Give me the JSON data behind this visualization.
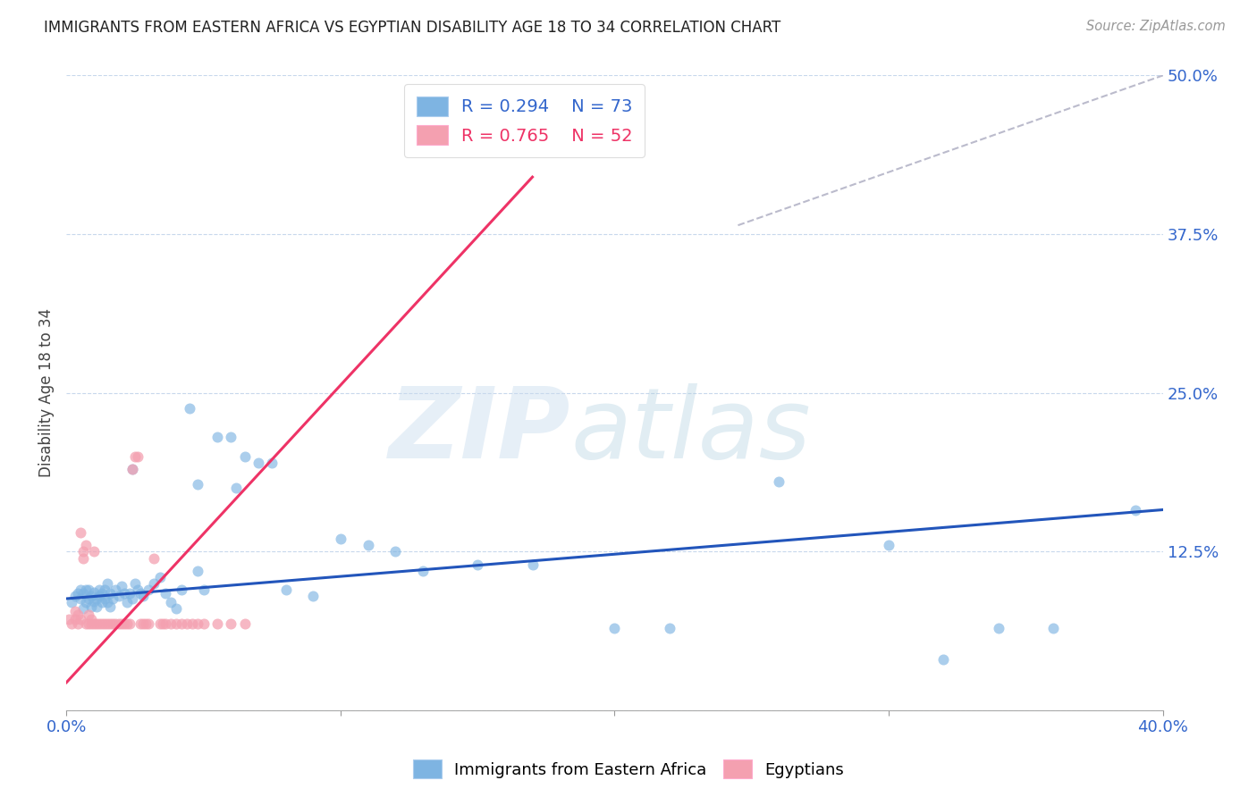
{
  "title": "IMMIGRANTS FROM EASTERN AFRICA VS EGYPTIAN DISABILITY AGE 18 TO 34 CORRELATION CHART",
  "source": "Source: ZipAtlas.com",
  "ylabel": "Disability Age 18 to 34",
  "xlim": [
    0.0,
    0.4
  ],
  "ylim": [
    0.0,
    0.5
  ],
  "xticks": [
    0.0,
    0.1,
    0.2,
    0.3,
    0.4
  ],
  "yticks": [
    0.0,
    0.125,
    0.25,
    0.375,
    0.5
  ],
  "xticklabels": [
    "0.0%",
    "",
    "",
    "",
    "40.0%"
  ],
  "yticklabels": [
    "",
    "12.5%",
    "25.0%",
    "37.5%",
    "50.0%"
  ],
  "blue_color": "#7EB4E2",
  "pink_color": "#F4A0B0",
  "blue_line_color": "#2255BB",
  "pink_line_color": "#EE3366",
  "gray_dash_color": "#BBBBCC",
  "legend_R_blue": "R = 0.294",
  "legend_N_blue": "N = 73",
  "legend_R_pink": "R = 0.765",
  "legend_N_pink": "N = 52",
  "blue_scatter_x": [
    0.002,
    0.003,
    0.004,
    0.005,
    0.005,
    0.006,
    0.006,
    0.007,
    0.007,
    0.008,
    0.008,
    0.009,
    0.009,
    0.01,
    0.01,
    0.011,
    0.011,
    0.012,
    0.012,
    0.013,
    0.013,
    0.014,
    0.014,
    0.015,
    0.015,
    0.016,
    0.016,
    0.017,
    0.018,
    0.019,
    0.02,
    0.021,
    0.022,
    0.023,
    0.024,
    0.025,
    0.026,
    0.027,
    0.028,
    0.03,
    0.032,
    0.034,
    0.036,
    0.038,
    0.04,
    0.042,
    0.045,
    0.048,
    0.05,
    0.055,
    0.06,
    0.065,
    0.07,
    0.075,
    0.08,
    0.09,
    0.1,
    0.11,
    0.12,
    0.13,
    0.15,
    0.17,
    0.2,
    0.22,
    0.26,
    0.3,
    0.32,
    0.34,
    0.36,
    0.39,
    0.024,
    0.048,
    0.062
  ],
  "blue_scatter_y": [
    0.085,
    0.09,
    0.092,
    0.088,
    0.095,
    0.08,
    0.092,
    0.085,
    0.095,
    0.088,
    0.095,
    0.082,
    0.09,
    0.086,
    0.093,
    0.088,
    0.082,
    0.09,
    0.095,
    0.085,
    0.092,
    0.088,
    0.095,
    0.1,
    0.085,
    0.092,
    0.082,
    0.088,
    0.095,
    0.09,
    0.098,
    0.092,
    0.085,
    0.092,
    0.088,
    0.1,
    0.095,
    0.092,
    0.09,
    0.095,
    0.1,
    0.105,
    0.092,
    0.085,
    0.08,
    0.095,
    0.238,
    0.11,
    0.095,
    0.215,
    0.215,
    0.2,
    0.195,
    0.195,
    0.095,
    0.09,
    0.135,
    0.13,
    0.125,
    0.11,
    0.115,
    0.115,
    0.065,
    0.065,
    0.18,
    0.13,
    0.04,
    0.065,
    0.065,
    0.158,
    0.19,
    0.178,
    0.175
  ],
  "pink_scatter_x": [
    0.001,
    0.002,
    0.003,
    0.003,
    0.004,
    0.004,
    0.005,
    0.005,
    0.006,
    0.006,
    0.007,
    0.007,
    0.008,
    0.008,
    0.009,
    0.009,
    0.01,
    0.01,
    0.011,
    0.012,
    0.013,
    0.014,
    0.015,
    0.016,
    0.017,
    0.018,
    0.019,
    0.02,
    0.021,
    0.022,
    0.023,
    0.024,
    0.025,
    0.026,
    0.027,
    0.028,
    0.029,
    0.03,
    0.032,
    0.034,
    0.035,
    0.036,
    0.038,
    0.04,
    0.042,
    0.044,
    0.046,
    0.048,
    0.05,
    0.055,
    0.06,
    0.065
  ],
  "pink_scatter_y": [
    0.072,
    0.068,
    0.072,
    0.078,
    0.068,
    0.075,
    0.14,
    0.072,
    0.12,
    0.125,
    0.068,
    0.13,
    0.068,
    0.075,
    0.068,
    0.072,
    0.125,
    0.068,
    0.068,
    0.068,
    0.068,
    0.068,
    0.068,
    0.068,
    0.068,
    0.068,
    0.068,
    0.068,
    0.068,
    0.068,
    0.068,
    0.19,
    0.2,
    0.2,
    0.068,
    0.068,
    0.068,
    0.068,
    0.12,
    0.068,
    0.068,
    0.068,
    0.068,
    0.068,
    0.068,
    0.068,
    0.068,
    0.068,
    0.068,
    0.068,
    0.068,
    0.068
  ],
  "blue_trend_x": [
    0.0,
    0.4
  ],
  "blue_trend_y": [
    0.088,
    0.158
  ],
  "pink_trend_x": [
    0.0,
    0.17
  ],
  "pink_trend_y": [
    0.022,
    0.42
  ],
  "gray_trend_x": [
    0.245,
    0.4
  ],
  "gray_trend_y": [
    0.382,
    0.5
  ]
}
